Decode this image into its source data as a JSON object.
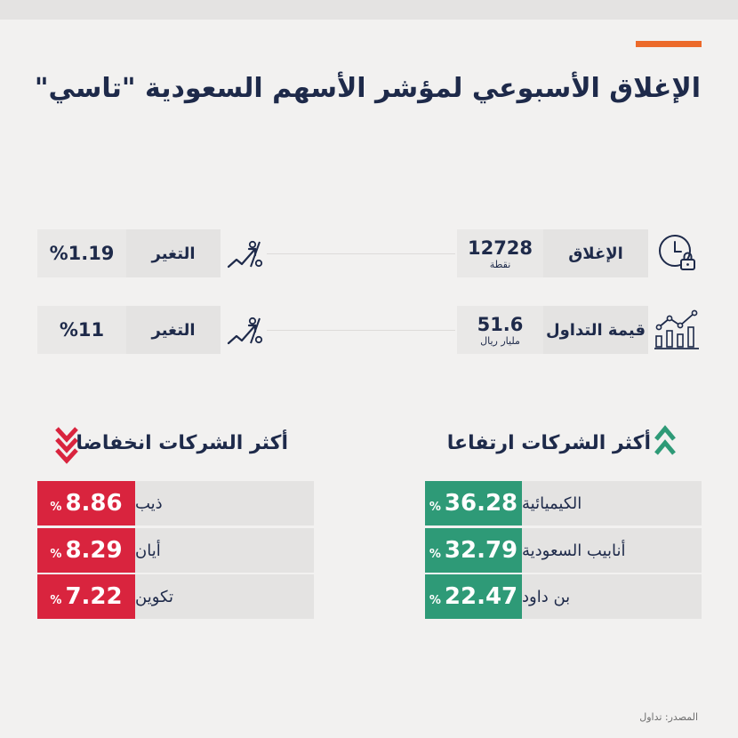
{
  "title": "الإغلاق الأسبوعي لمؤشر الأسهم السعودية \"تاسي\"",
  "colors": {
    "accent": "#ec6a2a",
    "navy": "#1e2a4a",
    "green": "#2e9a77",
    "red": "#d9243e"
  },
  "stats": [
    {
      "icon": "clock-lock-icon",
      "label": "الإغلاق",
      "value": "12728",
      "unit": "نقطة",
      "change_label": "التغير",
      "change_value": "%1.19",
      "trend_icon": "trend-up-percent-icon"
    },
    {
      "icon": "bar-chart-trend-icon",
      "label": "قيمة التداول",
      "value": "51.6",
      "unit": "مليار ريال",
      "change_label": "التغير",
      "change_value": "%11",
      "trend_icon": "trend-up-percent-icon"
    }
  ],
  "gainers": {
    "heading": "أكثر الشركات ارتفاعا",
    "icon": "double-chevron-up-icon",
    "items": [
      {
        "name": "الكيميائية",
        "value": "36.28",
        "pct": "%"
      },
      {
        "name": "أنابيب السعودية",
        "value": "32.79",
        "pct": "%"
      },
      {
        "name": "بن داود",
        "value": "22.47",
        "pct": "%"
      }
    ]
  },
  "losers": {
    "heading": "أكثر الشركات انخفاضا",
    "icon": "double-chevron-down-icon",
    "items": [
      {
        "name": "ذيب",
        "value": "8.86",
        "pct": "%"
      },
      {
        "name": "أيان",
        "value": "8.29",
        "pct": "%"
      },
      {
        "name": "تكوين",
        "value": "7.22",
        "pct": "%"
      }
    ]
  },
  "source": "المصدر: تداول"
}
